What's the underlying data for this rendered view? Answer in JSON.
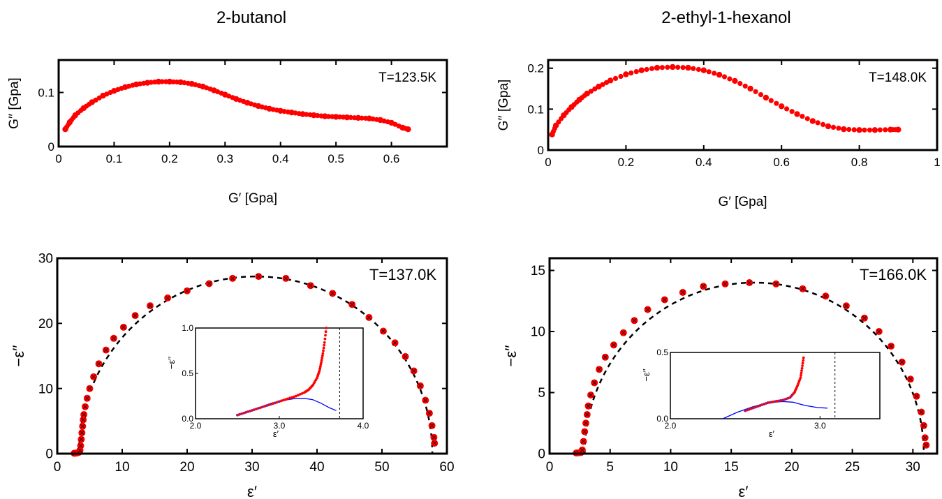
{
  "column_titles": [
    "2-butanol",
    "2-ethyl-1-hexanol"
  ],
  "colors": {
    "data": "#ff0000",
    "fit": "#000000",
    "blue_curve": "#0000ff",
    "purple_overlap": "#8b1a8b"
  },
  "chart_data": [
    {
      "type": "scatter",
      "panel": "top-left",
      "annotation": "T=123.5K",
      "xlabel": "G′ [Gpa]",
      "ylabel": "G′′ [Gpa]",
      "xlim": [
        0,
        0.7
      ],
      "ylim": [
        0,
        0.16
      ],
      "xticks": [
        0,
        0.1,
        0.2,
        0.3,
        0.4,
        0.5,
        0.6
      ],
      "xtick_labels": [
        "0",
        "0.1",
        "0.2",
        "0.3",
        "0.4",
        "0.5",
        "0.6"
      ],
      "yticks": [
        0,
        0.1
      ],
      "ytick_labels": [
        "0",
        "0.1"
      ],
      "series": [
        {
          "x": [
            0.012,
            0.02,
            0.03,
            0.045,
            0.06,
            0.08,
            0.1,
            0.12,
            0.14,
            0.16,
            0.18,
            0.2,
            0.22,
            0.24,
            0.26,
            0.28,
            0.3,
            0.32,
            0.34,
            0.36,
            0.38,
            0.4,
            0.42,
            0.44,
            0.46,
            0.48,
            0.5,
            0.52,
            0.54,
            0.56,
            0.58,
            0.6,
            0.62,
            0.63
          ],
          "y": [
            0.032,
            0.045,
            0.058,
            0.071,
            0.082,
            0.094,
            0.103,
            0.11,
            0.115,
            0.118,
            0.12,
            0.12,
            0.119,
            0.116,
            0.111,
            0.104,
            0.096,
            0.088,
            0.081,
            0.075,
            0.07,
            0.066,
            0.063,
            0.06,
            0.058,
            0.056,
            0.055,
            0.054,
            0.053,
            0.052,
            0.049,
            0.044,
            0.035,
            0.032
          ]
        }
      ]
    },
    {
      "type": "scatter",
      "panel": "top-right",
      "annotation": "T=148.0K",
      "xlabel": "G′ [Gpa]",
      "ylabel": "G′′ [Gpa]",
      "xlim": [
        0,
        1
      ],
      "ylim": [
        0,
        0.22
      ],
      "xticks": [
        0,
        0.2,
        0.4,
        0.6,
        0.8,
        1
      ],
      "xtick_labels": [
        "0",
        "0.2",
        "0.4",
        "0.6",
        "0.8",
        "1"
      ],
      "yticks": [
        0,
        0.1,
        0.2
      ],
      "ytick_labels": [
        "0",
        "0.1",
        "0.2"
      ],
      "series": [
        {
          "x": [
            0.01,
            0.02,
            0.04,
            0.06,
            0.08,
            0.1,
            0.13,
            0.16,
            0.2,
            0.24,
            0.28,
            0.32,
            0.36,
            0.4,
            0.44,
            0.48,
            0.52,
            0.56,
            0.6,
            0.64,
            0.68,
            0.72,
            0.76,
            0.8,
            0.84,
            0.88,
            0.9
          ],
          "y": [
            0.038,
            0.06,
            0.085,
            0.105,
            0.123,
            0.138,
            0.155,
            0.17,
            0.185,
            0.195,
            0.201,
            0.203,
            0.201,
            0.195,
            0.184,
            0.169,
            0.15,
            0.128,
            0.107,
            0.088,
            0.071,
            0.058,
            0.051,
            0.049,
            0.049,
            0.05,
            0.05
          ]
        }
      ]
    },
    {
      "type": "scatter",
      "panel": "bottom-left",
      "annotation": "T=137.0K",
      "xlabel": "ε′",
      "ylabel": "−ε′′",
      "xlim": [
        0,
        60
      ],
      "ylim": [
        0,
        30
      ],
      "xticks": [
        0,
        10,
        20,
        30,
        40,
        50,
        60
      ],
      "xtick_labels": [
        "0",
        "10",
        "20",
        "30",
        "40",
        "50",
        "60"
      ],
      "yticks": [
        0,
        10,
        20,
        30
      ],
      "ytick_labels": [
        "0",
        "10",
        "20",
        "30"
      ],
      "series": [
        {
          "name": "",
          "x": [
            2.6,
            2.8,
            3.0,
            3.2,
            3.4,
            3.5,
            3.6,
            3.7,
            3.8,
            3.9,
            4.0,
            4.1,
            4.3,
            4.6,
            5.0,
            5.6,
            6.4,
            7.5,
            8.7,
            10.2,
            12.0,
            14.3,
            17.0,
            20.0,
            23.4,
            27.0,
            31.0,
            35.2,
            39.0,
            42.4,
            45.4,
            48.0,
            50.2,
            52.0,
            53.6,
            54.9,
            55.9,
            56.7,
            57.3,
            57.7,
            58.0,
            58.1
          ],
          "y": [
            0.05,
            0.08,
            0.1,
            0.15,
            0.25,
            0.5,
            1.2,
            2.2,
            3.2,
            4.2,
            5.2,
            6.0,
            7.2,
            8.5,
            10.0,
            11.8,
            13.8,
            15.9,
            17.7,
            19.4,
            21.2,
            22.7,
            23.9,
            25.0,
            26.1,
            26.9,
            27.2,
            26.9,
            25.8,
            24.6,
            22.9,
            20.9,
            18.8,
            17.0,
            14.9,
            12.7,
            10.4,
            8.2,
            6.2,
            4.3,
            2.5,
            1.6
          ]
        }
      ],
      "fit": {
        "center": 30.55,
        "radius": 27.2
      },
      "inset": {
        "xlabel": "ε′",
        "ylabel": "−ε′′",
        "xlim": [
          2.0,
          4.0
        ],
        "ylim": [
          0,
          1.0
        ],
        "xtick_labels": [
          "2.0",
          "3.0",
          "4.0"
        ],
        "ytick_labels": [
          "0.0",
          "0.5",
          "1.0"
        ],
        "dashed_x": 3.72,
        "points": {
          "x": [
            2.5,
            2.6,
            2.7,
            2.8,
            2.9,
            3.0,
            3.1,
            3.2,
            3.3,
            3.35,
            3.4,
            3.45,
            3.48,
            3.5,
            3.52,
            3.54,
            3.56
          ],
          "y": [
            0.04,
            0.07,
            0.1,
            0.13,
            0.16,
            0.19,
            0.22,
            0.25,
            0.29,
            0.32,
            0.37,
            0.45,
            0.53,
            0.62,
            0.72,
            0.84,
            1.0
          ]
        },
        "blue_curve": {
          "x": [
            2.5,
            2.7,
            2.9,
            3.1,
            3.2,
            3.3,
            3.4,
            3.5,
            3.6,
            3.68
          ],
          "y": [
            0.04,
            0.1,
            0.17,
            0.21,
            0.225,
            0.225,
            0.21,
            0.17,
            0.12,
            0.09
          ]
        }
      }
    },
    {
      "type": "scatter",
      "panel": "bottom-right",
      "annotation": "T=166.0K",
      "xlabel": "ε′",
      "ylabel": "−ε′′",
      "xlim": [
        0,
        32
      ],
      "ylim": [
        0,
        16
      ],
      "xticks": [
        0,
        5,
        10,
        15,
        20,
        25,
        30
      ],
      "xtick_labels": [
        "0",
        "5",
        "10",
        "15",
        "20",
        "25",
        "30"
      ],
      "yticks": [
        0,
        5,
        10,
        15
      ],
      "ytick_labels": [
        "0",
        "5",
        "10",
        "15"
      ],
      "series": [
        {
          "name": "",
          "x": [
            2.2,
            2.4,
            2.6,
            2.7,
            2.8,
            2.9,
            3.0,
            3.1,
            3.2,
            3.4,
            3.7,
            4.1,
            4.6,
            5.3,
            6.1,
            7.0,
            8.1,
            9.5,
            11.0,
            12.7,
            14.5,
            16.5,
            18.7,
            20.9,
            22.8,
            24.5,
            26.0,
            27.2,
            28.2,
            29.1,
            29.8,
            30.3,
            30.7,
            30.9,
            31.0,
            31.1
          ],
          "y": [
            0.05,
            0.07,
            0.1,
            0.3,
            1.0,
            1.8,
            2.5,
            3.2,
            3.9,
            4.8,
            5.8,
            6.9,
            7.9,
            8.9,
            9.9,
            10.9,
            11.8,
            12.6,
            13.2,
            13.7,
            13.9,
            14.0,
            13.9,
            13.5,
            12.9,
            12.1,
            11.1,
            10.0,
            8.8,
            7.5,
            6.1,
            4.7,
            3.4,
            2.3,
            1.3,
            0.7
          ]
        }
      ],
      "fit": {
        "center": 16.9,
        "radius": 14.0
      },
      "inset": {
        "xlabel": "ε′",
        "ylabel": "−ε′′",
        "xlim": [
          2.0,
          3.4
        ],
        "ylim": [
          0,
          0.5
        ],
        "xtick_labels": [
          "2.0",
          "3.0"
        ],
        "ytick_labels": [
          "0.0",
          "0.5"
        ],
        "dashed_x": 3.1,
        "points": {
          "x": [
            2.5,
            2.55,
            2.6,
            2.65,
            2.7,
            2.75,
            2.8,
            2.83,
            2.85,
            2.87,
            2.88,
            2.89
          ],
          "y": [
            0.06,
            0.08,
            0.1,
            0.12,
            0.13,
            0.14,
            0.16,
            0.2,
            0.25,
            0.31,
            0.38,
            0.46
          ]
        },
        "blue_curve": {
          "x": [
            2.35,
            2.45,
            2.55,
            2.65,
            2.75,
            2.82,
            2.9,
            2.98,
            3.05
          ],
          "y": [
            0.0,
            0.05,
            0.09,
            0.12,
            0.13,
            0.125,
            0.1,
            0.085,
            0.08
          ]
        }
      }
    }
  ]
}
